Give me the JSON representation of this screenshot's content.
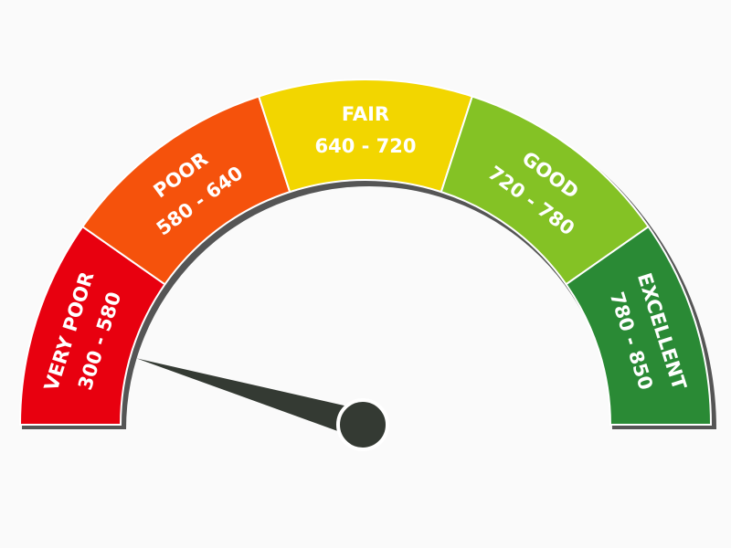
{
  "chart_data": {
    "type": "gauge",
    "range": [
      300,
      850
    ],
    "needle_value": 350,
    "segments": [
      {
        "label": "VERY POOR",
        "range_label": "300 - 580",
        "color": "#e8000f"
      },
      {
        "label": "POOR",
        "range_label": "580 - 640",
        "color": "#f5520c"
      },
      {
        "label": "FAIR",
        "range_label": "640 - 720",
        "color": "#f2d600"
      },
      {
        "label": "GOOD",
        "range_label": "720 - 780",
        "color": "#84c225"
      },
      {
        "label": "EXCELLENT",
        "range_label": "780 - 850",
        "color": "#2a8a35"
      }
    ],
    "needle_color": "#343a33",
    "shadow_color": "#555555"
  }
}
